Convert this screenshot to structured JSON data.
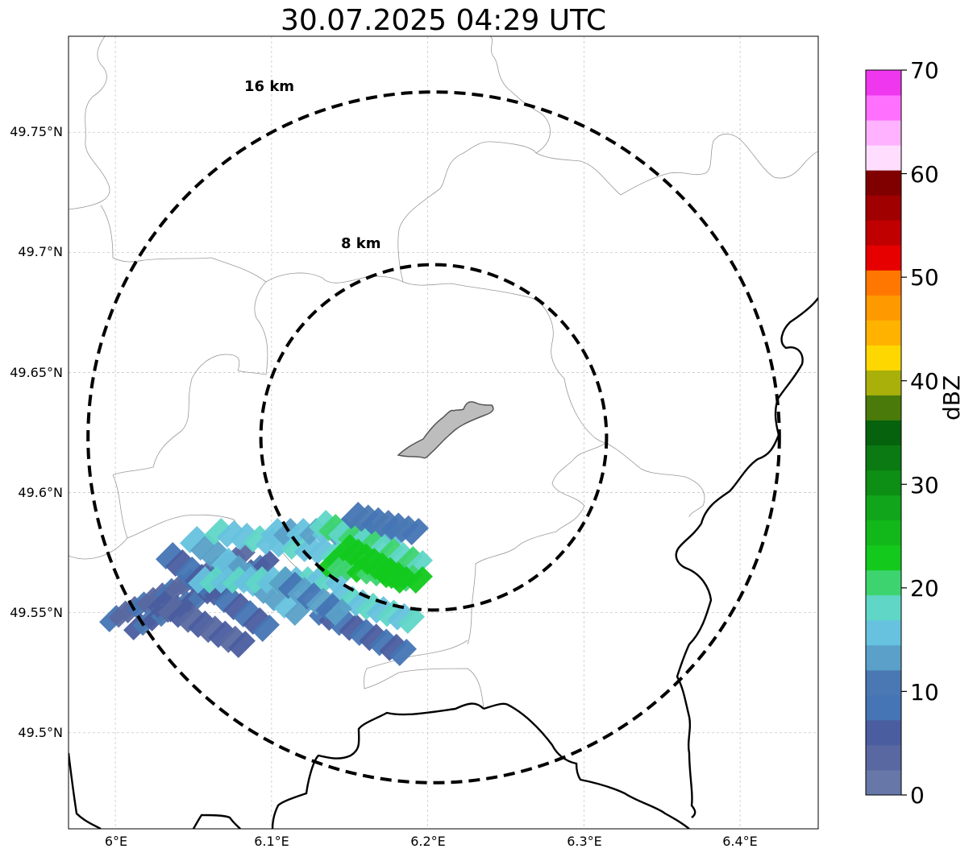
{
  "title": "30.07.2025 04:29 UTC",
  "map": {
    "lon_range": [
      5.97,
      6.45
    ],
    "lat_range": [
      49.46,
      49.79
    ],
    "lat_ticks": [
      {
        "value": 49.75,
        "label": "49.75°N"
      },
      {
        "value": 49.7,
        "label": "49.7°N"
      },
      {
        "value": 49.65,
        "label": "49.65°N"
      },
      {
        "value": 49.6,
        "label": "49.6°N"
      },
      {
        "value": 49.55,
        "label": "49.55°N"
      },
      {
        "value": 49.5,
        "label": "49.5°N"
      }
    ],
    "lon_ticks": [
      {
        "value": 6.0,
        "label": "6°E"
      },
      {
        "value": 6.1,
        "label": "6.1°E"
      },
      {
        "value": 6.2,
        "label": "6.2°E"
      },
      {
        "value": 6.3,
        "label": "6.3°E"
      },
      {
        "value": 6.4,
        "label": "6.4°E"
      }
    ],
    "range_rings": [
      {
        "label": "16 km",
        "radius_km": 16
      },
      {
        "label": "8 km",
        "radius_km": 8
      }
    ],
    "gridlines": true,
    "center_feature": "city-outline"
  },
  "colorbar": {
    "label": "dBZ",
    "ticks": [
      "0",
      "10",
      "20",
      "30",
      "40",
      "50",
      "60",
      "70"
    ],
    "min": 0,
    "max": 70,
    "step": 2.5,
    "colors": [
      "#6677a8",
      "#5968a0",
      "#4a5d9f",
      "#4575b4",
      "#4a78b2",
      "#5aa0c8",
      "#66c2de",
      "#5fd6c6",
      "#3dd46f",
      "#12c91c",
      "#12b81a",
      "#10a51a",
      "#0d8e14",
      "#0b7a12",
      "#06620d",
      "#4a7a0a",
      "#a9b00a",
      "#ffd700",
      "#ffb300",
      "#ff9900",
      "#ff7700",
      "#e60000",
      "#c00000",
      "#a00000",
      "#800000",
      "#ffddff",
      "#ffb2ff",
      "#ff70ff",
      "#f037f0"
    ]
  }
}
